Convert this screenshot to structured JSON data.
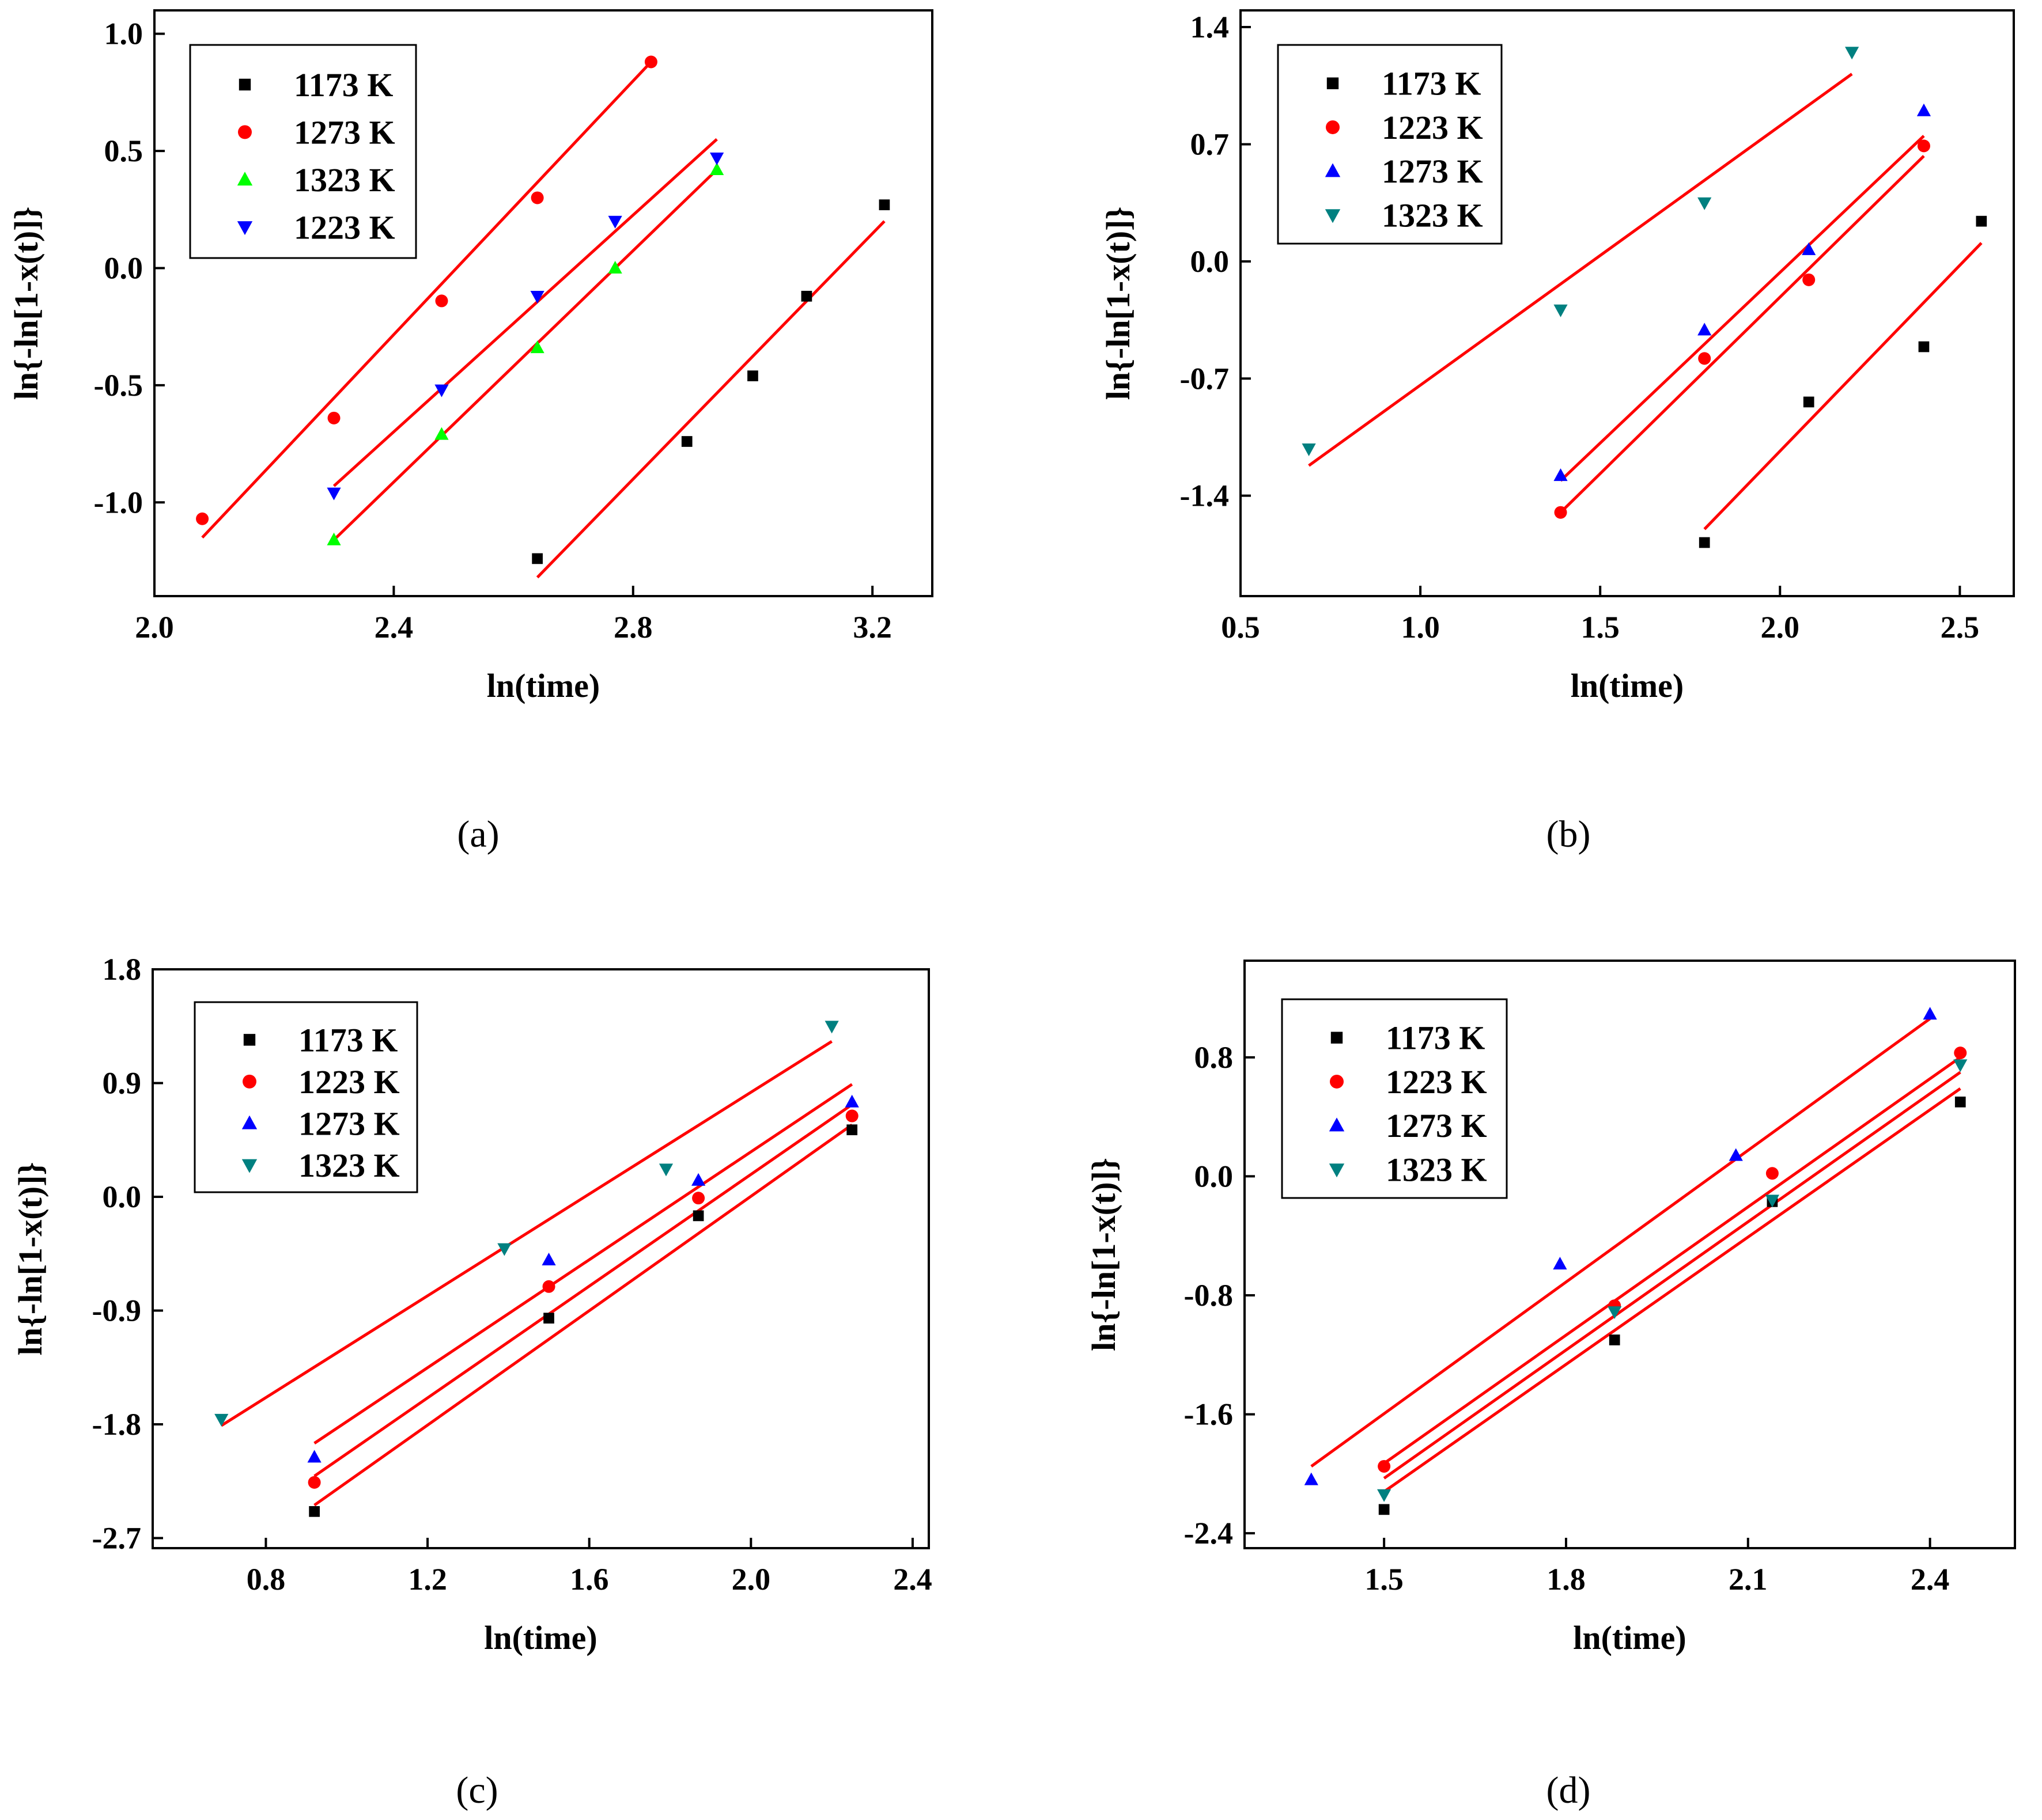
{
  "figure": {
    "panels": [
      "a",
      "b",
      "c",
      "d"
    ]
  },
  "colors": {
    "fit_line": "#ff0000",
    "1173 K": "#000000",
    "1223 K": "#ff0000",
    "1273 K": "#0000ff",
    "1323 K": "#00ff00",
    "1323 K teal": "#008080",
    "1223 K blue": "#0000ff"
  },
  "chart_data": [
    {
      "panel": "a",
      "caption": "(a)",
      "type": "scatter",
      "xlabel": "ln(time)",
      "ylabel": "ln{-ln[1-x(t)]}",
      "xlim": [
        2.0,
        3.3
      ],
      "ylim": [
        -1.4,
        1.1
      ],
      "xticks": [
        2.0,
        2.4,
        2.8,
        3.2
      ],
      "yticks": [
        1.0,
        0.5,
        0.0,
        -0.5,
        -1.0
      ],
      "xtick_labels": [
        "2.0",
        "2.4",
        "2.8",
        "3.2"
      ],
      "ytick_labels": [
        "1.0",
        "0.5",
        "0.0",
        "-0.5",
        "-1.0"
      ],
      "legend": [
        "1173 K",
        "1273 K",
        "1323 K",
        "1223 K"
      ],
      "series": [
        {
          "name": "1173 K",
          "marker": "square",
          "color": "#000000",
          "x": [
            2.64,
            2.89,
            3.0,
            3.09,
            3.22
          ],
          "y": [
            -1.24,
            -0.74,
            -0.46,
            -0.12,
            0.27
          ],
          "fit": [
            [
              2.64,
              -1.32
            ],
            [
              3.22,
              0.2
            ]
          ]
        },
        {
          "name": "1273 K",
          "marker": "circle",
          "color": "#ff0000",
          "x": [
            2.08,
            2.3,
            2.48,
            2.64,
            2.83
          ],
          "y": [
            -1.07,
            -0.64,
            -0.14,
            0.3,
            0.88
          ],
          "fit": [
            [
              2.08,
              -1.15
            ],
            [
              2.83,
              0.88
            ]
          ]
        },
        {
          "name": "1323 K",
          "marker": "triangle-up",
          "color": "#00ff00",
          "x": [
            2.3,
            2.48,
            2.64,
            2.77,
            2.94
          ],
          "y": [
            -1.16,
            -0.71,
            -0.34,
            0.0,
            0.42
          ],
          "fit": [
            [
              2.3,
              -1.16
            ],
            [
              2.94,
              0.42
            ]
          ]
        },
        {
          "name": "1223 K",
          "marker": "triangle-down",
          "color": "#0000ff",
          "x": [
            2.3,
            2.48,
            2.64,
            2.77,
            2.94
          ],
          "y": [
            -0.96,
            -0.52,
            -0.12,
            0.2,
            0.47
          ],
          "fit": [
            [
              2.3,
              -0.93
            ],
            [
              2.94,
              0.55
            ]
          ]
        }
      ]
    },
    {
      "panel": "b",
      "caption": "(b)",
      "type": "scatter",
      "xlabel": "ln(time)",
      "ylabel": "ln{-ln[1-x(t)]}",
      "xlim": [
        0.5,
        2.65
      ],
      "ylim": [
        -2.0,
        1.5
      ],
      "xticks": [
        0.5,
        1.0,
        1.5,
        2.0,
        2.5
      ],
      "yticks": [
        1.4,
        0.7,
        0.0,
        -0.7,
        -1.4
      ],
      "xtick_labels": [
        "0.5",
        "1.0",
        "1.5",
        "2.0",
        "2.5"
      ],
      "ytick_labels": [
        "1.4",
        "0.7",
        "0.0",
        "-0.7",
        "-1.4"
      ],
      "legend": [
        "1173 K",
        "1223 K",
        "1273 K",
        "1323 K"
      ],
      "series": [
        {
          "name": "1173 K",
          "marker": "square",
          "color": "#000000",
          "x": [
            1.79,
            2.08,
            2.4,
            2.56
          ],
          "y": [
            -1.68,
            -0.84,
            -0.51,
            0.24
          ],
          "fit": [
            [
              1.79,
              -1.6
            ],
            [
              2.56,
              0.11
            ]
          ]
        },
        {
          "name": "1223 K",
          "marker": "circle",
          "color": "#ff0000",
          "x": [
            1.39,
            1.79,
            2.08,
            2.4
          ],
          "y": [
            -1.5,
            -0.58,
            -0.11,
            0.69
          ],
          "fit": [
            [
              1.39,
              -1.5
            ],
            [
              2.4,
              0.63
            ]
          ]
        },
        {
          "name": "1273 K",
          "marker": "triangle-up",
          "color": "#0000ff",
          "x": [
            1.39,
            1.79,
            2.08,
            2.4
          ],
          "y": [
            -1.28,
            -0.41,
            0.07,
            0.9
          ],
          "fit": [
            [
              1.39,
              -1.31
            ],
            [
              2.4,
              0.75
            ]
          ]
        },
        {
          "name": "1323 K",
          "marker": "triangle-down",
          "color": "#008080",
          "x": [
            0.69,
            1.39,
            1.79,
            2.2
          ],
          "y": [
            -1.12,
            -0.29,
            0.35,
            1.25
          ],
          "fit": [
            [
              0.69,
              -1.22
            ],
            [
              2.2,
              1.12
            ]
          ]
        }
      ]
    },
    {
      "panel": "c",
      "caption": "(c)",
      "type": "scatter",
      "xlabel": "ln(time)",
      "ylabel": "ln{-ln[1-x(t)]}",
      "xlim": [
        0.52,
        2.44
      ],
      "ylim": [
        -2.78,
        1.8
      ],
      "xticks": [
        0.8,
        1.2,
        1.6,
        2.0,
        2.4
      ],
      "yticks": [
        1.8,
        0.9,
        0.0,
        -0.9,
        -1.8,
        -2.7
      ],
      "xtick_labels": [
        "0.8",
        "1.2",
        "1.6",
        "2.0",
        "2.4"
      ],
      "ytick_labels": [
        "1.8",
        "0.9",
        "0.0",
        "-0.9",
        "-1.8",
        "-2.7"
      ],
      "legend": [
        "1173 K",
        "1223 K",
        "1273 K",
        "1323 K"
      ],
      "series": [
        {
          "name": "1173 K",
          "marker": "square",
          "color": "#000000",
          "x": [
            0.92,
            1.5,
            1.87,
            2.25
          ],
          "y": [
            -2.49,
            -0.96,
            -0.15,
            0.53
          ],
          "fit": [
            [
              0.92,
              -2.44
            ],
            [
              2.25,
              0.57
            ]
          ]
        },
        {
          "name": "1223 K",
          "marker": "circle",
          "color": "#ff0000",
          "x": [
            0.92,
            1.5,
            1.87,
            2.25
          ],
          "y": [
            -2.26,
            -0.71,
            -0.01,
            0.64
          ],
          "fit": [
            [
              0.92,
              -2.21
            ],
            [
              2.25,
              0.73
            ]
          ]
        },
        {
          "name": "1273 K",
          "marker": "triangle-up",
          "color": "#0000ff",
          "x": [
            0.92,
            1.5,
            1.87,
            2.25
          ],
          "y": [
            -2.06,
            -0.5,
            0.13,
            0.75
          ],
          "fit": [
            [
              0.92,
              -1.95
            ],
            [
              2.25,
              0.89
            ]
          ]
        },
        {
          "name": "1323 K",
          "marker": "triangle-down",
          "color": "#008080",
          "x": [
            0.69,
            1.39,
            1.79,
            2.2
          ],
          "y": [
            -1.76,
            -0.41,
            0.22,
            1.35
          ],
          "fit": [
            [
              0.69,
              -1.81
            ],
            [
              2.2,
              1.23
            ]
          ]
        }
      ]
    },
    {
      "panel": "d",
      "caption": "(d)",
      "type": "scatter",
      "xlabel": "ln(time)",
      "ylabel": "ln{-ln[1-x(t)]}",
      "xlim": [
        1.27,
        2.54
      ],
      "ylim": [
        -2.5,
        1.45
      ],
      "xticks": [
        1.5,
        1.8,
        2.1,
        2.4
      ],
      "yticks": [
        0.8,
        0.0,
        -0.8,
        -1.6,
        -2.4
      ],
      "xtick_labels": [
        "1.5",
        "1.8",
        "2.1",
        "2.4"
      ],
      "ytick_labels": [
        "0.8",
        "0.0",
        "-0.8",
        "-1.6",
        "-2.4"
      ],
      "legend": [
        "1173 K",
        "1223 K",
        "1273 K",
        "1323 K"
      ],
      "series": [
        {
          "name": "1173 K",
          "marker": "square",
          "color": "#000000",
          "x": [
            1.5,
            1.88,
            2.14,
            2.45
          ],
          "y": [
            -2.24,
            -1.1,
            -0.17,
            0.5
          ],
          "fit": [
            [
              1.5,
              -2.12
            ],
            [
              2.45,
              0.59
            ]
          ]
        },
        {
          "name": "1223 K",
          "marker": "circle",
          "color": "#ff0000",
          "x": [
            1.5,
            1.88,
            2.14,
            2.45
          ],
          "y": [
            -1.95,
            -0.87,
            0.02,
            0.83
          ],
          "fit": [
            [
              1.5,
              -1.93
            ],
            [
              2.45,
              0.8
            ]
          ]
        },
        {
          "name": "1273 K",
          "marker": "triangle-up",
          "color": "#0000ff",
          "x": [
            1.38,
            1.79,
            2.08,
            2.4
          ],
          "y": [
            -2.04,
            -0.59,
            0.14,
            1.09
          ],
          "fit": [
            [
              1.38,
              -1.95
            ],
            [
              2.4,
              1.06
            ]
          ]
        },
        {
          "name": "1323 K",
          "marker": "triangle-down",
          "color": "#008080",
          "x": [
            1.5,
            1.88,
            2.14,
            2.45
          ],
          "y": [
            -2.14,
            -0.91,
            -0.16,
            0.75
          ],
          "fit": [
            [
              1.5,
              -2.03
            ],
            [
              2.45,
              0.7
            ]
          ]
        }
      ]
    }
  ]
}
